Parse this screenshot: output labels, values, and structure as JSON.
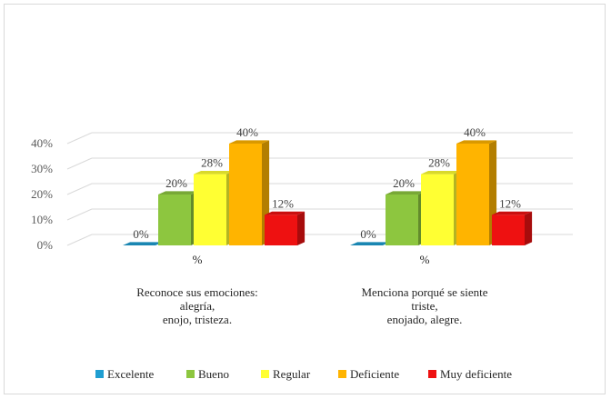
{
  "chart_data": {
    "type": "bar",
    "style": "3d-clustered-column",
    "y_ticks": [
      "0%",
      "10%",
      "20%",
      "30%",
      "40%"
    ],
    "ylim": [
      0,
      40
    ],
    "grid": true,
    "legend_position": "bottom",
    "groups": [
      {
        "axis_label": "%",
        "category_lines": [
          "Reconoce sus emociones:",
          "alegría,",
          "enojo, tristeza."
        ]
      },
      {
        "axis_label": "%",
        "category_lines": [
          "Menciona porqué se siente",
          "triste,",
          "enojado, alegre."
        ]
      }
    ],
    "series": [
      {
        "name": "Excelente",
        "color": "#1f9ed1",
        "values": [
          0,
          0
        ],
        "labels": [
          "0%",
          "0%"
        ]
      },
      {
        "name": "Bueno",
        "color": "#8dc63f",
        "values": [
          20,
          20
        ],
        "labels": [
          "20%",
          "20%"
        ]
      },
      {
        "name": "Regular",
        "color": "#ffff33",
        "values": [
          28,
          28
        ],
        "labels": [
          "28%",
          "28%"
        ]
      },
      {
        "name": "Deficiente",
        "color": "#ffb400",
        "values": [
          40,
          40
        ],
        "labels": [
          "40%",
          "40%"
        ]
      },
      {
        "name": "Muy deficiente",
        "color": "#ee1111",
        "values": [
          12,
          12
        ],
        "labels": [
          "12%",
          "12%"
        ]
      }
    ]
  }
}
